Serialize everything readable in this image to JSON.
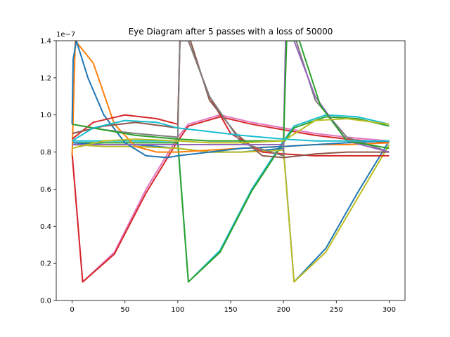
{
  "chart_data": {
    "type": "line",
    "title": "Eye Diagram after 5 passes with a loss of 50000",
    "xlabel": "",
    "ylabel": "",
    "y_offset_label": "1e−7",
    "xlim": [
      -15,
      315
    ],
    "ylim": [
      0,
      1.4
    ],
    "y_scale_exponent": -7,
    "x_ticks": [
      0,
      50,
      100,
      150,
      200,
      250,
      300
    ],
    "y_ticks": [
      0.0,
      0.2,
      0.4,
      0.6,
      0.8,
      1.0,
      1.2,
      1.4
    ],
    "x_tick_labels": [
      "0",
      "50",
      "100",
      "150",
      "200",
      "250",
      "300"
    ],
    "y_tick_labels": [
      "0.0",
      "0.2",
      "0.4",
      "0.6",
      "0.8",
      "1.0",
      "1.2",
      "1.4"
    ],
    "grid": false,
    "legend": "none",
    "palette": [
      "#1f77b4",
      "#ff7f0e",
      "#2ca02c",
      "#d62728",
      "#9467bd",
      "#8c564b",
      "#e377c2",
      "#7f7f7f",
      "#bcbd22",
      "#17becf"
    ],
    "series": [
      {
        "color": "#e377c2",
        "x": [
          0,
          10,
          40,
          70,
          100,
          110,
          140,
          170,
          200,
          230,
          260,
          300
        ],
        "y": [
          0.8,
          0.1,
          0.26,
          0.6,
          0.88,
          0.95,
          1.0,
          0.96,
          0.93,
          0.9,
          0.88,
          0.86
        ]
      },
      {
        "color": "#d62728",
        "x": [
          0,
          10,
          40,
          70,
          100,
          110,
          140,
          170,
          200,
          230,
          260,
          300
        ],
        "y": [
          0.79,
          0.1,
          0.25,
          0.58,
          0.86,
          0.94,
          0.99,
          0.95,
          0.92,
          0.89,
          0.87,
          0.85
        ]
      },
      {
        "color": "#17becf",
        "x": [
          0,
          40,
          70,
          100,
          110,
          140,
          170,
          200,
          210,
          240,
          270,
          300
        ],
        "y": [
          0.86,
          0.86,
          0.86,
          0.86,
          0.1,
          0.27,
          0.6,
          0.86,
          0.94,
          1.0,
          0.99,
          0.95
        ]
      },
      {
        "color": "#2ca02c",
        "x": [
          0,
          40,
          70,
          100,
          110,
          140,
          170,
          200,
          210,
          240,
          270,
          300
        ],
        "y": [
          0.85,
          0.85,
          0.85,
          0.85,
          0.1,
          0.26,
          0.59,
          0.85,
          0.93,
          0.99,
          0.98,
          0.94
        ]
      },
      {
        "color": "#1f77b4",
        "x": [
          0,
          30,
          60,
          100,
          130,
          160,
          200,
          210,
          240,
          270,
          300
        ],
        "y": [
          0.85,
          0.84,
          0.84,
          0.82,
          0.8,
          0.8,
          0.82,
          0.1,
          0.28,
          0.58,
          0.86
        ]
      },
      {
        "color": "#bcbd22",
        "x": [
          0,
          30,
          60,
          100,
          130,
          160,
          200,
          210,
          240,
          270,
          300
        ],
        "y": [
          0.84,
          0.83,
          0.83,
          0.82,
          0.8,
          0.8,
          0.81,
          0.1,
          0.26,
          0.55,
          0.84
        ]
      },
      {
        "color": "#ff7f0e",
        "x": [
          0,
          3,
          20,
          40,
          60,
          80,
          100,
          130,
          160,
          200,
          230,
          260,
          300
        ],
        "y": [
          0.78,
          1.4,
          1.28,
          0.95,
          0.83,
          0.8,
          0.8,
          0.81,
          0.82,
          0.83,
          0.84,
          0.84,
          0.85
        ]
      },
      {
        "color": "#1f77b4",
        "x": [
          0,
          1,
          4,
          15,
          30,
          50,
          70,
          90,
          100,
          130,
          160,
          200,
          230,
          260,
          300
        ],
        "y": [
          0.95,
          1.3,
          1.4,
          1.2,
          1.0,
          0.85,
          0.78,
          0.77,
          0.78,
          0.8,
          0.82,
          0.83,
          0.84,
          0.85,
          0.86
        ]
      },
      {
        "color": "#d62728",
        "x": [
          0,
          20,
          50,
          80,
          100,
          102,
          110,
          130,
          150,
          180,
          200,
          230,
          260,
          300
        ],
        "y": [
          0.87,
          0.96,
          1.0,
          0.98,
          0.95,
          1.4,
          1.4,
          1.1,
          0.9,
          0.8,
          0.79,
          0.78,
          0.78,
          0.78
        ]
      },
      {
        "color": "#8c564b",
        "x": [
          0,
          30,
          60,
          100,
          102,
          112,
          130,
          155,
          180,
          200,
          230,
          260,
          300
        ],
        "y": [
          0.9,
          0.94,
          0.96,
          0.93,
          1.4,
          1.4,
          1.08,
          0.9,
          0.78,
          0.77,
          0.79,
          0.8,
          0.8
        ]
      },
      {
        "color": "#7f7f7f",
        "x": [
          0,
          30,
          60,
          100,
          102,
          110,
          130,
          160,
          200,
          202,
          212,
          230,
          260,
          300
        ],
        "y": [
          0.95,
          0.92,
          0.9,
          0.88,
          1.4,
          1.4,
          1.1,
          0.85,
          0.78,
          1.4,
          1.4,
          1.08,
          0.88,
          0.8
        ]
      },
      {
        "color": "#9467bd",
        "x": [
          0,
          30,
          60,
          100,
          130,
          160,
          200,
          202,
          210,
          230,
          260,
          300
        ],
        "y": [
          0.84,
          0.84,
          0.84,
          0.84,
          0.84,
          0.84,
          0.84,
          1.4,
          1.4,
          1.1,
          0.86,
          0.8
        ]
      },
      {
        "color": "#2ca02c",
        "x": [
          0,
          30,
          60,
          100,
          130,
          160,
          200,
          203,
          215,
          235,
          260,
          300
        ],
        "y": [
          0.95,
          0.92,
          0.89,
          0.87,
          0.86,
          0.86,
          0.86,
          1.4,
          1.4,
          1.05,
          0.86,
          0.82
        ]
      },
      {
        "color": "#bcbd22",
        "x": [
          0,
          30,
          60,
          100,
          130,
          160,
          200,
          230,
          260,
          300
        ],
        "y": [
          0.82,
          0.86,
          0.87,
          0.86,
          0.85,
          0.85,
          0.86,
          0.97,
          0.98,
          0.95
        ]
      },
      {
        "color": "#17becf",
        "x": [
          0,
          20,
          50,
          80,
          100,
          130,
          160,
          200,
          230,
          260,
          300
        ],
        "y": [
          0.86,
          0.93,
          0.97,
          0.96,
          0.93,
          0.91,
          0.89,
          0.87,
          0.86,
          0.86,
          0.86
        ]
      }
    ]
  }
}
